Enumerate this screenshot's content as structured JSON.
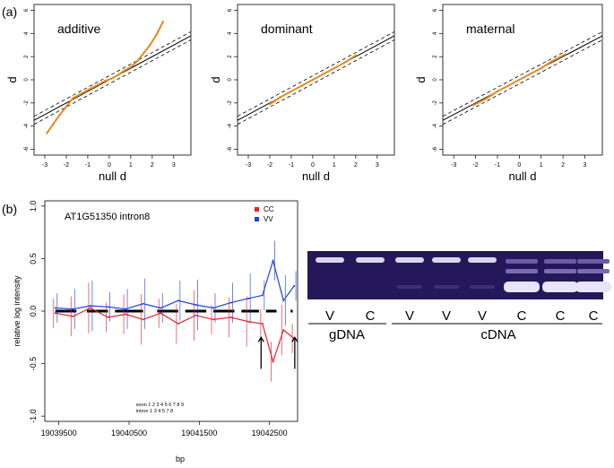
{
  "panel_a": {
    "label": "(a)",
    "xlabel": "null d",
    "ylabel": "d",
    "ticks": [
      "-3",
      "-2",
      "-1",
      "0",
      "1",
      "2",
      "3"
    ],
    "yticks": [
      "-6",
      "-4",
      "-2",
      "0",
      "2",
      "4",
      "6"
    ],
    "plots": [
      {
        "title": "additive"
      },
      {
        "title": "dominant"
      },
      {
        "title": "maternal"
      }
    ]
  },
  "panel_b": {
    "label": "(b)",
    "title": "AT1G51350 intron8",
    "ylabel": "relative log intensity",
    "xlabel": "bp",
    "yticks": [
      "-1.0",
      "-0.5",
      "0.0",
      "0.5",
      "1.0"
    ],
    "xticks": [
      "19039500",
      "19040500",
      "19041500",
      "19042500"
    ],
    "legend": [
      {
        "name": "CC",
        "color": "#e8202a"
      },
      {
        "name": "VV",
        "color": "#2040e0"
      }
    ],
    "exon_label": "exon 1 2 3 4 5 6 7 8 9",
    "intron_label": "intron 1 3 4 5 7 8"
  },
  "gel": {
    "lane_labels": [
      "V",
      "C",
      "V",
      "V",
      "V",
      "C",
      "C",
      "C"
    ],
    "groups": [
      "gDNA",
      "cDNA"
    ]
  },
  "chart_data": [
    {
      "type": "scatter",
      "title": "additive",
      "xlabel": "null d",
      "ylabel": "d",
      "xlim": [
        -3.5,
        3.8
      ],
      "ylim": [
        -6.5,
        6.5
      ],
      "reference_line": {
        "slope": 1,
        "intercept": 0
      },
      "x": [
        -2.9,
        -2.6,
        -2.3,
        -2.0,
        -1.7,
        -1.4,
        -1.1,
        -0.8,
        -0.5,
        -0.2,
        0.1,
        0.4,
        0.7,
        1.0,
        1.3,
        1.6,
        1.9,
        2.2,
        2.5
      ],
      "y": [
        -4.6,
        -3.8,
        -3.0,
        -2.3,
        -1.6,
        -1.3,
        -1.0,
        -0.7,
        -0.4,
        -0.1,
        0.1,
        0.4,
        0.8,
        1.1,
        1.6,
        2.3,
        3.0,
        3.9,
        5.0
      ]
    },
    {
      "type": "scatter",
      "title": "dominant",
      "xlabel": "null d",
      "ylabel": "d",
      "xlim": [
        -3.5,
        3.8
      ],
      "ylim": [
        -6.5,
        6.5
      ],
      "reference_line": {
        "slope": 1,
        "intercept": 0
      },
      "x": [
        -2.0,
        -1.5,
        -1.0,
        -0.5,
        0.0,
        0.5,
        1.0,
        1.5,
        2.0
      ],
      "y": [
        -2.1,
        -1.5,
        -1.0,
        -0.5,
        0.0,
        0.5,
        1.0,
        1.5,
        2.1
      ]
    },
    {
      "type": "scatter",
      "title": "maternal",
      "xlabel": "null d",
      "ylabel": "d",
      "xlim": [
        -3.5,
        3.8
      ],
      "ylim": [
        -6.5,
        6.5
      ],
      "reference_line": {
        "slope": 1,
        "intercept": 0
      },
      "x": [
        -2.1,
        -1.5,
        -1.0,
        -0.5,
        0.0,
        0.5,
        1.0,
        1.5,
        2.1
      ],
      "y": [
        -2.2,
        -1.6,
        -1.0,
        -0.5,
        0.0,
        0.5,
        1.0,
        1.6,
        2.2
      ]
    },
    {
      "type": "line",
      "title": "AT1G51350 intron8",
      "xlabel": "bp",
      "ylabel": "relative log intensity",
      "xlim": [
        19039300,
        19042900
      ],
      "ylim": [
        -1.05,
        1.05
      ],
      "series": [
        {
          "name": "CC",
          "x": [
            19039450,
            19039700,
            19039950,
            19040200,
            19040450,
            19040700,
            19040950,
            19041200,
            19041450,
            19041700,
            19041950,
            19042200,
            19042400,
            19042550,
            19042700,
            19042850
          ],
          "y": [
            -0.02,
            -0.05,
            0.03,
            -0.06,
            -0.03,
            -0.08,
            -0.02,
            -0.12,
            -0.04,
            -0.08,
            -0.06,
            -0.1,
            -0.12,
            -0.48,
            -0.18,
            -0.26
          ]
        },
        {
          "name": "VV",
          "x": [
            19039450,
            19039700,
            19039950,
            19040200,
            19040450,
            19040700,
            19040950,
            19041200,
            19041450,
            19041700,
            19041950,
            19042200,
            19042400,
            19042550,
            19042700,
            19042850
          ],
          "y": [
            0.03,
            0.02,
            0.05,
            0.04,
            0.02,
            0.07,
            0.03,
            0.1,
            0.06,
            0.03,
            0.08,
            0.12,
            0.15,
            0.48,
            0.1,
            0.24
          ]
        }
      ]
    }
  ]
}
